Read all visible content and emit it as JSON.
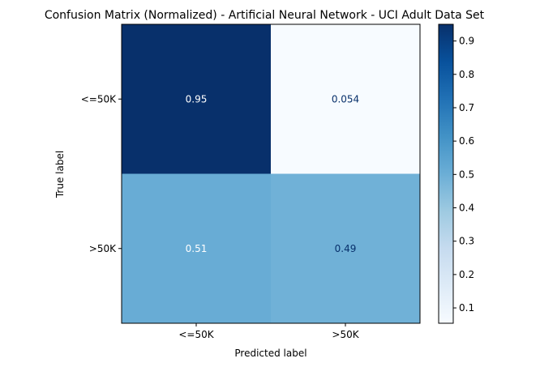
{
  "chart_data": {
    "type": "heatmap",
    "title": "Confusion Matrix (Normalized) - Artificial Neural Network - UCI Adult Data Set",
    "xlabel": "Predicted label",
    "ylabel": "True label",
    "x_categories": [
      "<=50K",
      ">50K"
    ],
    "y_categories": [
      "<=50K",
      ">50K"
    ],
    "values": [
      [
        0.95,
        0.054
      ],
      [
        0.51,
        0.49
      ]
    ],
    "cell_labels": [
      [
        "0.95",
        "0.054"
      ],
      [
        "0.51",
        "0.49"
      ]
    ],
    "colormap": "Blues",
    "colorbar": {
      "range": [
        0.054,
        0.95
      ],
      "ticks": [
        0.1,
        0.2,
        0.3,
        0.4,
        0.5,
        0.6,
        0.7,
        0.8,
        0.9
      ],
      "tick_labels": [
        "0.1",
        "0.2",
        "0.3",
        "0.4",
        "0.5",
        "0.6",
        "0.7",
        "0.8",
        "0.9"
      ]
    }
  }
}
